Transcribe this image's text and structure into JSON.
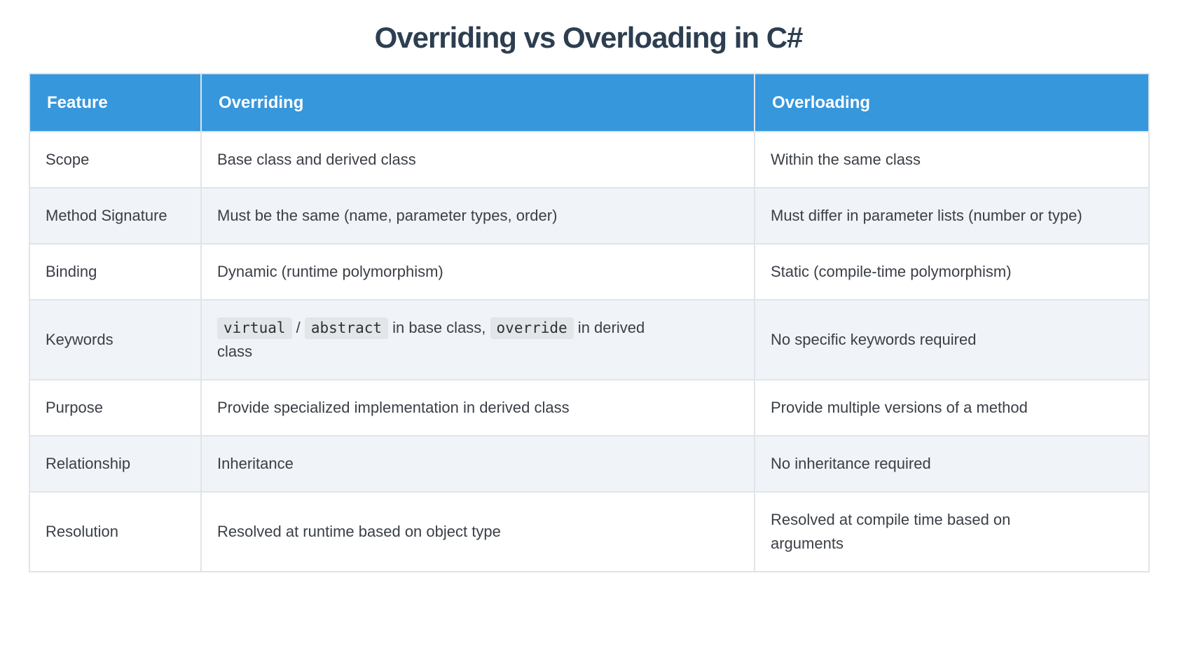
{
  "page": {
    "title": "Overriding vs Overloading in C#"
  },
  "colors": {
    "header_bg": "#3797dc",
    "header_text": "#ffffff",
    "title_text": "#2d3e50",
    "row_bg": "#ffffff",
    "row_alt_bg": "#f0f3f8",
    "body_text": "#3a3f46",
    "border": "#e1e4e8",
    "code_bg": "#e2e6e9",
    "code_text": "#2d3136"
  },
  "table": {
    "columns": [
      {
        "label": "Feature"
      },
      {
        "label": "Overriding"
      },
      {
        "label": "Overloading"
      }
    ],
    "rows": [
      {
        "feature": "Scope",
        "overriding": [
          {
            "text": "Base class and derived class"
          }
        ],
        "overloading": [
          {
            "text": "Within the same class"
          }
        ]
      },
      {
        "feature": "Method Signature",
        "overriding": [
          {
            "text": "Must be the same (name, parameter types, order)"
          }
        ],
        "overloading": [
          {
            "text": "Must differ in parameter lists (number or type)"
          }
        ]
      },
      {
        "feature": "Binding",
        "overriding": [
          {
            "text": "Dynamic (runtime polymorphism)"
          }
        ],
        "overloading": [
          {
            "text": "Static (compile-time polymorphism)"
          }
        ]
      },
      {
        "feature": "Keywords",
        "overriding": [
          {
            "text": "virtual",
            "code": true
          },
          {
            "text": " / "
          },
          {
            "text": "abstract",
            "code": true
          },
          {
            "text": " in base class, "
          },
          {
            "text": "override",
            "code": true
          },
          {
            "text": " in derived class"
          }
        ],
        "overloading": [
          {
            "text": "No specific keywords required"
          }
        ]
      },
      {
        "feature": "Purpose",
        "overriding": [
          {
            "text": "Provide specialized implementation in derived class"
          }
        ],
        "overloading": [
          {
            "text": "Provide multiple versions of a method"
          }
        ]
      },
      {
        "feature": "Relationship",
        "overriding": [
          {
            "text": "Inheritance"
          }
        ],
        "overloading": [
          {
            "text": "No inheritance required"
          }
        ]
      },
      {
        "feature": "Resolution",
        "overriding": [
          {
            "text": "Resolved at runtime based on object type"
          }
        ],
        "overloading": [
          {
            "text": "Resolved at compile time based on arguments"
          }
        ]
      }
    ]
  }
}
